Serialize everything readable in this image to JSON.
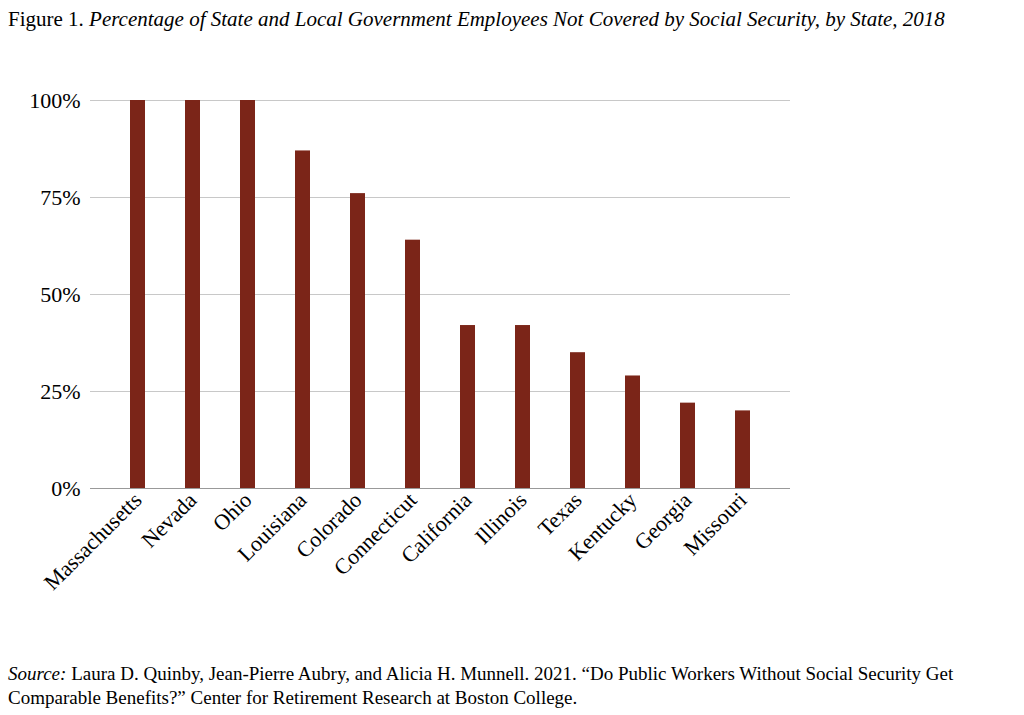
{
  "chart_data": {
    "type": "bar",
    "title": "Figure 1. Percentage of State and Local Government Employees Not Covered by Social Security, by State, 2018",
    "source": "Source: Laura D. Quinby, Jean-Pierre Aubry, and Alicia H. Munnell. 2021. “Do Public Workers Without Social Security Get Comparable Benefits?” Center for Retirement Research at Boston College.",
    "categories": [
      "Massachusetts",
      "Nevada",
      "Ohio",
      "Louisiana",
      "Colorado",
      "Connecticut",
      "California",
      "Illinois",
      "Texas",
      "Kentucky",
      "Georgia",
      "Missouri"
    ],
    "values": [
      100,
      100,
      100,
      87,
      76,
      64,
      42,
      42,
      35,
      29,
      22,
      20
    ],
    "color": "#7b2518",
    "ylim": [
      0,
      100
    ],
    "yticks": [
      {
        "value": 0,
        "label": "0%"
      },
      {
        "value": 25,
        "label": "25%"
      },
      {
        "value": 50,
        "label": "50%"
      },
      {
        "value": 75,
        "label": "75%"
      },
      {
        "value": 100,
        "label": "100%"
      }
    ],
    "grid": true
  }
}
